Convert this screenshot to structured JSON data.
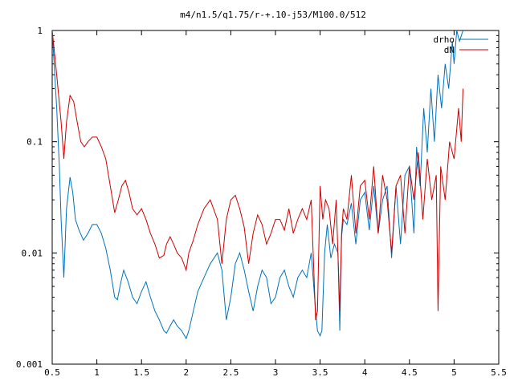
{
  "chart_data": {
    "type": "line",
    "title": "m4/n1.5/q1.75/r-+.10-j53/M100.0/512",
    "xlabel": "",
    "ylabel": "",
    "xlim": [
      0.5,
      5.5
    ],
    "ylim": [
      0.001,
      1
    ],
    "yscale": "log",
    "grid": false,
    "legend_position": "top-right",
    "x_ticks": [
      0.5,
      1,
      1.5,
      2,
      2.5,
      3,
      3.5,
      4,
      4.5,
      5,
      5.5
    ],
    "x_tick_labels": [
      "0.5",
      "1",
      "1.5",
      "2",
      "2.5",
      "3",
      "3.5",
      "4",
      "4.5",
      "5",
      "5.5"
    ],
    "y_ticks": [
      0.001,
      0.01,
      0.1,
      1
    ],
    "y_tick_labels": [
      "0.001",
      "0.01",
      "0.1",
      "1"
    ],
    "series": [
      {
        "name": "drho",
        "color": "#0072bd",
        "x": [
          0.5,
          0.55,
          0.58,
          0.6,
          0.63,
          0.66,
          0.7,
          0.73,
          0.76,
          0.8,
          0.85,
          0.9,
          0.95,
          1.0,
          1.05,
          1.1,
          1.15,
          1.2,
          1.23,
          1.27,
          1.3,
          1.35,
          1.4,
          1.45,
          1.5,
          1.55,
          1.6,
          1.65,
          1.7,
          1.75,
          1.78,
          1.82,
          1.86,
          1.9,
          1.95,
          2.0,
          2.03,
          2.08,
          2.13,
          2.2,
          2.27,
          2.35,
          2.4,
          2.45,
          2.5,
          2.55,
          2.6,
          2.65,
          2.7,
          2.75,
          2.8,
          2.85,
          2.9,
          2.95,
          3.0,
          3.05,
          3.1,
          3.15,
          3.2,
          3.25,
          3.3,
          3.35,
          3.4,
          3.45,
          3.47,
          3.5,
          3.52,
          3.55,
          3.58,
          3.62,
          3.66,
          3.7,
          3.72,
          3.74,
          3.76,
          3.8,
          3.85,
          3.9,
          3.95,
          4.0,
          4.05,
          4.1,
          4.15,
          4.2,
          4.25,
          4.3,
          4.35,
          4.4,
          4.45,
          4.5,
          4.55,
          4.58,
          4.62,
          4.66,
          4.7,
          4.74,
          4.78,
          4.82,
          4.86,
          4.9,
          4.94,
          4.98,
          5.0,
          5.03,
          5.06,
          5.1
        ],
        "values": [
          1.0,
          0.2,
          0.06,
          0.02,
          0.006,
          0.025,
          0.048,
          0.035,
          0.02,
          0.016,
          0.013,
          0.015,
          0.018,
          0.018,
          0.015,
          0.011,
          0.007,
          0.004,
          0.0038,
          0.0055,
          0.007,
          0.0055,
          0.004,
          0.0035,
          0.0045,
          0.0055,
          0.004,
          0.003,
          0.0025,
          0.002,
          0.0019,
          0.0022,
          0.0025,
          0.0022,
          0.002,
          0.0017,
          0.002,
          0.003,
          0.0045,
          0.006,
          0.008,
          0.01,
          0.007,
          0.0025,
          0.004,
          0.008,
          0.01,
          0.007,
          0.0045,
          0.003,
          0.005,
          0.007,
          0.006,
          0.0035,
          0.004,
          0.006,
          0.007,
          0.005,
          0.004,
          0.006,
          0.007,
          0.006,
          0.01,
          0.003,
          0.002,
          0.0018,
          0.002,
          0.01,
          0.018,
          0.009,
          0.012,
          0.01,
          0.002,
          0.014,
          0.02,
          0.018,
          0.028,
          0.012,
          0.03,
          0.035,
          0.016,
          0.04,
          0.015,
          0.03,
          0.04,
          0.009,
          0.04,
          0.012,
          0.05,
          0.06,
          0.015,
          0.09,
          0.04,
          0.2,
          0.08,
          0.3,
          0.1,
          0.4,
          0.2,
          0.5,
          0.3,
          0.8,
          0.5,
          1.0,
          0.8,
          1.0
        ]
      },
      {
        "name": "dN",
        "color": "#cc0000",
        "x": [
          0.5,
          0.55,
          0.6,
          0.63,
          0.66,
          0.7,
          0.74,
          0.78,
          0.82,
          0.86,
          0.9,
          0.95,
          1.0,
          1.05,
          1.1,
          1.15,
          1.2,
          1.24,
          1.28,
          1.32,
          1.36,
          1.4,
          1.45,
          1.5,
          1.55,
          1.6,
          1.65,
          1.7,
          1.75,
          1.78,
          1.82,
          1.86,
          1.9,
          1.95,
          2.0,
          2.03,
          2.08,
          2.13,
          2.2,
          2.27,
          2.35,
          2.4,
          2.45,
          2.5,
          2.55,
          2.6,
          2.65,
          2.7,
          2.75,
          2.8,
          2.85,
          2.9,
          2.95,
          3.0,
          3.05,
          3.1,
          3.15,
          3.2,
          3.25,
          3.3,
          3.35,
          3.4,
          3.45,
          3.47,
          3.5,
          3.53,
          3.56,
          3.6,
          3.64,
          3.68,
          3.72,
          3.74,
          3.76,
          3.8,
          3.85,
          3.9,
          3.95,
          4.0,
          4.05,
          4.1,
          4.15,
          4.2,
          4.25,
          4.3,
          4.35,
          4.4,
          4.45,
          4.5,
          4.55,
          4.6,
          4.65,
          4.7,
          4.75,
          4.8,
          4.82,
          4.85,
          4.9,
          4.95,
          5.0,
          5.05,
          5.08,
          5.1
        ],
        "values": [
          1.0,
          0.4,
          0.15,
          0.07,
          0.15,
          0.26,
          0.23,
          0.15,
          0.1,
          0.09,
          0.1,
          0.11,
          0.11,
          0.09,
          0.07,
          0.04,
          0.023,
          0.03,
          0.04,
          0.045,
          0.035,
          0.025,
          0.022,
          0.025,
          0.02,
          0.015,
          0.012,
          0.009,
          0.0095,
          0.012,
          0.014,
          0.012,
          0.01,
          0.009,
          0.007,
          0.01,
          0.013,
          0.018,
          0.025,
          0.03,
          0.02,
          0.008,
          0.02,
          0.03,
          0.033,
          0.025,
          0.017,
          0.008,
          0.015,
          0.022,
          0.018,
          0.012,
          0.015,
          0.02,
          0.02,
          0.016,
          0.025,
          0.015,
          0.02,
          0.025,
          0.02,
          0.03,
          0.0025,
          0.003,
          0.04,
          0.02,
          0.03,
          0.025,
          0.012,
          0.03,
          0.003,
          0.015,
          0.025,
          0.02,
          0.05,
          0.015,
          0.04,
          0.045,
          0.02,
          0.06,
          0.015,
          0.05,
          0.03,
          0.01,
          0.04,
          0.05,
          0.015,
          0.06,
          0.03,
          0.08,
          0.02,
          0.07,
          0.03,
          0.05,
          0.003,
          0.06,
          0.03,
          0.1,
          0.07,
          0.2,
          0.1,
          0.3
        ]
      }
    ]
  }
}
